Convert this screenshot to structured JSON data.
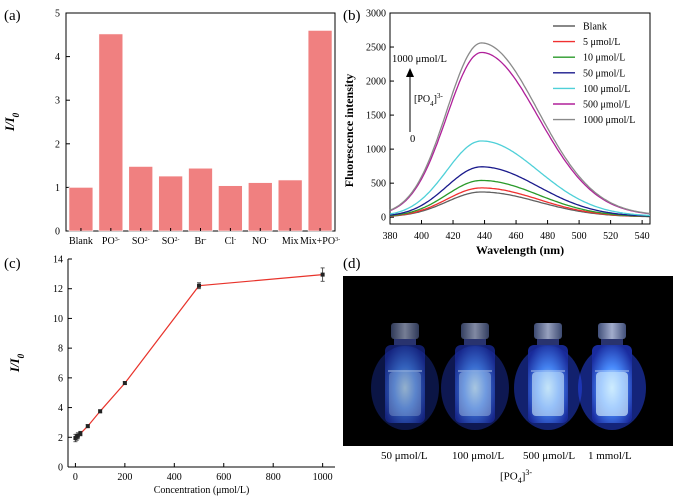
{
  "panels": {
    "a": "(a)",
    "b": "(b)",
    "c": "(c)",
    "d": "(d)"
  },
  "colors": {
    "bar": "#f08080",
    "line_red": "#e8332b",
    "photo_bg": "#000000",
    "vial_glow": "#3a6cff"
  },
  "chart_data": [
    {
      "id": "a",
      "type": "bar",
      "categories": [
        "Blank",
        "PO4 3-",
        "SO4 2-",
        "SO3 2-",
        "Br-",
        "Cl-",
        "NO3-",
        "Mix",
        "Mix+PO4 3-"
      ],
      "category_labels": [
        {
          "main": "Blank"
        },
        {
          "main": "PO",
          "sub": "4",
          "sup": "3-"
        },
        {
          "main": "SO",
          "sub": "4",
          "sup": "2-"
        },
        {
          "main": "SO",
          "sub": "3",
          "sup": "2-"
        },
        {
          "main": "Br",
          "sup": "-"
        },
        {
          "main": "Cl",
          "sup": "-"
        },
        {
          "main": "NO",
          "sub": "3",
          "sup": "-"
        },
        {
          "main": "Mix"
        },
        {
          "main": "Mix+PO",
          "sub": "4",
          "sup": "3-"
        }
      ],
      "values": [
        1.0,
        4.52,
        1.48,
        1.26,
        1.44,
        1.04,
        1.11,
        1.17,
        4.6
      ],
      "ylabel": "I/I0",
      "ylim": [
        0,
        5
      ],
      "yticks": [
        0,
        1,
        2,
        3,
        4,
        5
      ]
    },
    {
      "id": "b",
      "type": "line",
      "xlabel": "Wavelength (nm)",
      "ylabel": "Fluorescence intensity",
      "xlim": [
        380,
        545
      ],
      "ylim": [
        -100,
        3000
      ],
      "xticks": [
        380,
        400,
        420,
        440,
        460,
        480,
        500,
        520,
        540
      ],
      "yticks": [
        0,
        500,
        1000,
        1500,
        2000,
        2500,
        3000
      ],
      "peak": 438,
      "series": [
        {
          "name": "Blank",
          "color": "#606060",
          "peak": 370,
          "base": 4
        },
        {
          "name": "5 μmol/L",
          "color": "#f03030",
          "peak": 430,
          "base": 5
        },
        {
          "name": "10 μmol/L",
          "color": "#2a9a2a",
          "peak": 540,
          "base": 6
        },
        {
          "name": "50 μmol/L",
          "color": "#1a1a8c",
          "peak": 740,
          "base": 8
        },
        {
          "name": "100 μmol/L",
          "color": "#4fd0d8",
          "peak": 1120,
          "base": 12
        },
        {
          "name": "500 μmol/L",
          "color": "#b0209a",
          "peak": 2420,
          "base": 22
        },
        {
          "name": "1000 μmol/L",
          "color": "#8a8a8a",
          "peak": 2560,
          "base": 24
        }
      ],
      "annotation": {
        "top": "1000 μmol/L",
        "mid_main": "[PO",
        "mid_sub": "4",
        "mid_end": "]",
        "mid_sup": "3-",
        "bottom": "0"
      }
    },
    {
      "id": "c",
      "type": "scatter",
      "xlabel": "Concentration (μmol/L)",
      "ylabel": "I/I0",
      "xlim": [
        -30,
        1050
      ],
      "ylim": [
        0,
        14
      ],
      "xticks": [
        0,
        200,
        400,
        600,
        800,
        1000
      ],
      "yticks": [
        0,
        2,
        4,
        6,
        8,
        10,
        12,
        14
      ],
      "x": [
        0,
        5,
        10,
        20,
        50,
        100,
        200,
        500,
        1000
      ],
      "y": [
        1.95,
        2.0,
        2.1,
        2.25,
        2.75,
        3.75,
        5.65,
        12.2,
        12.95
      ],
      "err": [
        0.25,
        0.2,
        0.2,
        0.15,
        0.1,
        0.1,
        0.1,
        0.2,
        0.45
      ]
    }
  ],
  "photo": {
    "captions": [
      "50 μmol/L",
      "100 μmol/L",
      "500 μmol/L",
      "1 mmol/L"
    ],
    "group_label_main": "[PO",
    "group_label_sub": "4",
    "group_label_end": "]",
    "group_label_sup": "3-",
    "glow_levels": [
      0.35,
      0.5,
      0.8,
      0.95
    ]
  }
}
